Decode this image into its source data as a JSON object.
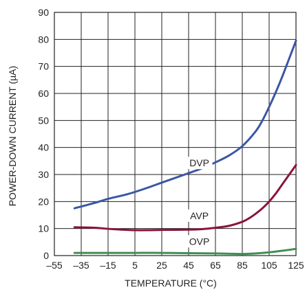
{
  "chart_data": {
    "type": "line",
    "title": "",
    "xlabel": "TEMPERATURE (°C)",
    "ylabel": "POWER-DOWN CURRENT (µA)",
    "xlim": [
      -55,
      125
    ],
    "ylim": [
      0,
      90
    ],
    "x_ticks": [
      -55,
      -35,
      -15,
      5,
      25,
      45,
      65,
      85,
      105,
      125
    ],
    "x_tick_labels": [
      "–55",
      "–35",
      "–15",
      "5",
      "25",
      "45",
      "65",
      "85",
      "105",
      "125"
    ],
    "y_ticks": [
      0,
      10,
      20,
      30,
      40,
      50,
      60,
      70,
      80,
      90
    ],
    "y_tick_labels": [
      "0",
      "10",
      "20",
      "30",
      "40",
      "50",
      "60",
      "70",
      "80",
      "90"
    ],
    "grid": true,
    "series": [
      {
        "name": "DVP",
        "color": "#3a56a6",
        "x": [
          -40,
          -25,
          -15,
          0,
          15,
          25,
          45,
          55,
          65,
          75,
          85,
          95,
          100,
          105,
          110,
          115,
          120,
          125
        ],
        "y": [
          17.5,
          19.5,
          21.0,
          22.8,
          25.2,
          27.0,
          30.5,
          32.3,
          34.5,
          37.0,
          40.5,
          46.0,
          50.0,
          55.0,
          60.5,
          66.5,
          73.0,
          79.5
        ]
      },
      {
        "name": "AVP",
        "color": "#8a1538",
        "x": [
          -40,
          -25,
          -15,
          -5,
          5,
          15,
          25,
          45,
          55,
          65,
          75,
          85,
          90,
          95,
          100,
          105,
          110,
          115,
          120,
          125
        ],
        "y": [
          10.5,
          10.3,
          9.9,
          9.6,
          9.4,
          9.4,
          9.5,
          9.6,
          9.8,
          10.3,
          11.0,
          12.5,
          13.8,
          15.5,
          17.5,
          20.0,
          23.0,
          26.5,
          30.0,
          33.5
        ]
      },
      {
        "name": "OVP",
        "color": "#3e8f52",
        "x": [
          -40,
          -15,
          5,
          25,
          45,
          65,
          75,
          85,
          95,
          105,
          115,
          125
        ],
        "y": [
          1.0,
          1.0,
          1.0,
          1.0,
          0.9,
          0.8,
          0.7,
          0.6,
          0.8,
          1.2,
          1.8,
          2.5
        ]
      }
    ],
    "label_positions": [
      {
        "name": "DVP",
        "x": 53,
        "y": 33
      },
      {
        "name": "AVP",
        "x": 53,
        "y": 13.5
      },
      {
        "name": "OVP",
        "x": 53,
        "y": 4
      }
    ]
  }
}
